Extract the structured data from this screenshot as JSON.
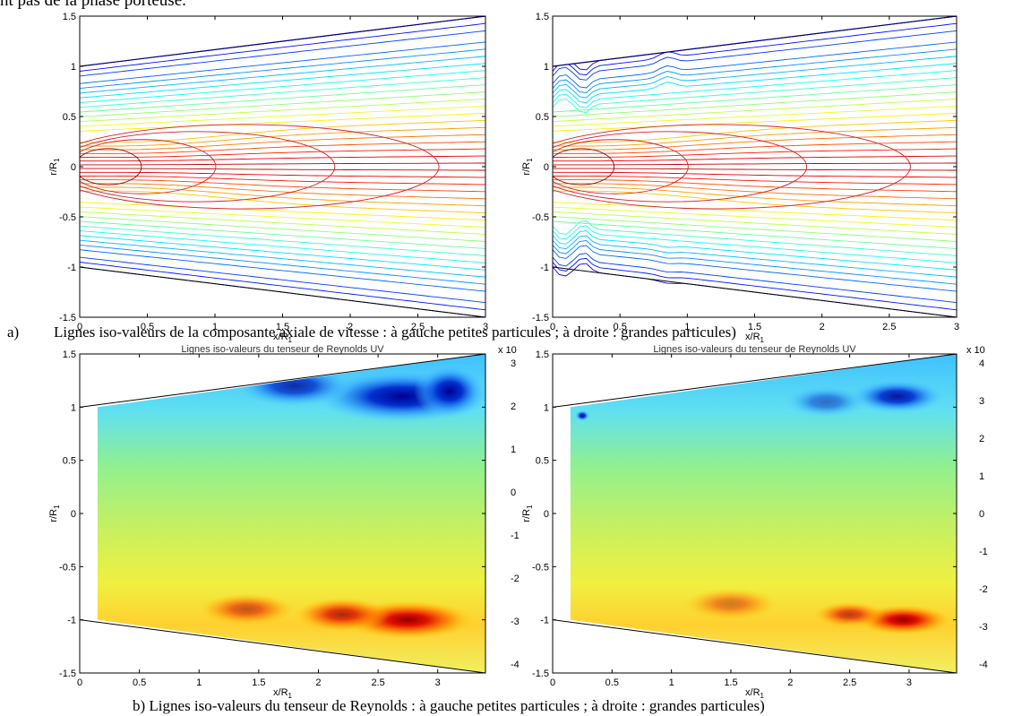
{
  "top_text": "nt pas de la phase porteuse.",
  "caption_a_marker": "a)",
  "caption_a": "Lignes iso-valeurs de la composante axiale de vitesse : à gauche petites particules ; à droite : grandes particules)",
  "caption_b": "b) Lignes iso-valeurs du tenseur de Reynolds : à gauche petites particules ; à droite : grandes particules)",
  "chart_data": [
    {
      "type": "contour",
      "position": "top-left",
      "title": "",
      "xlabel": "x/R",
      "xlabel_sub": "1",
      "ylabel": "r/R",
      "ylabel_sub": "1",
      "xlim": [
        0,
        3
      ],
      "ylim": [
        -1.5,
        1.5
      ],
      "xticks": [
        "0",
        "0.5",
        "1",
        "1.5",
        "2",
        "2.5",
        "3"
      ],
      "yticks": [
        "-1.5",
        "-1",
        "-0.5",
        "0",
        "0.5",
        "1",
        "1.5"
      ],
      "boundary_upper": [
        [
          0,
          1.0
        ],
        [
          3,
          1.5
        ]
      ],
      "boundary_lower": [
        [
          0,
          -1.0
        ],
        [
          3,
          -1.5
        ]
      ]
    },
    {
      "type": "contour",
      "position": "top-right",
      "title": "",
      "xlabel": "x/R",
      "xlabel_sub": "1",
      "ylabel": "r/R",
      "ylabel_sub": "1",
      "xlim": [
        0,
        3
      ],
      "ylim": [
        -1.5,
        1.5
      ],
      "xticks": [
        "0",
        "0.5",
        "1",
        "1.5",
        "2",
        "2.5",
        "3"
      ],
      "yticks": [
        "-1.5",
        "-1",
        "-0.5",
        "0",
        "0.5",
        "1",
        "1.5"
      ],
      "boundary_upper": [
        [
          0,
          1.0
        ],
        [
          3,
          1.5
        ]
      ],
      "boundary_lower": [
        [
          0,
          -1.0
        ],
        [
          3,
          -1.5
        ]
      ]
    },
    {
      "type": "heatmap",
      "position": "bottom-left",
      "title": "Lignes iso-valeurs du tenseur de Reynolds UV",
      "xlabel": "x/R",
      "xlabel_sub": "1",
      "ylabel": "r/R",
      "ylabel_sub": "1",
      "xlim": [
        0,
        3.4
      ],
      "ylim": [
        -1.5,
        1.5
      ],
      "xticks": [
        "0",
        "0.5",
        "1",
        "1.5",
        "2",
        "2.5",
        "3"
      ],
      "yticks": [
        "-1.5",
        "-1",
        "-0.5",
        "0",
        "0.5",
        "1",
        "1.5"
      ],
      "colorbar_ticks": [
        "3",
        "2",
        "1",
        "0",
        "-1",
        "-2",
        "-3",
        "-4"
      ],
      "colorbar_exponent": "x 10"
    },
    {
      "type": "heatmap",
      "position": "bottom-right",
      "title": "Lignes iso-valeurs du tenseur de Reynolds UV",
      "xlabel": "x/R",
      "xlabel_sub": "1",
      "ylabel": "r/R",
      "ylabel_sub": "1",
      "xlim": [
        0,
        3.4
      ],
      "ylim": [
        -1.5,
        1.5
      ],
      "xticks": [
        "0",
        "0.5",
        "1",
        "1.5",
        "2",
        "2.5",
        "3"
      ],
      "yticks": [
        "-1.5",
        "-1",
        "-0.5",
        "0",
        "0.5",
        "1",
        "1.5"
      ],
      "colorbar_ticks": [
        "4",
        "3",
        "2",
        "1",
        "0",
        "-1",
        "-2",
        "-3",
        "-4"
      ],
      "colorbar_exponent": "x 10"
    }
  ]
}
